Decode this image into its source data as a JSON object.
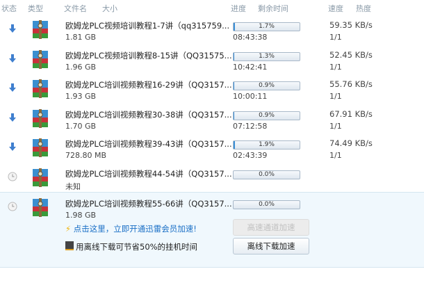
{
  "header": {
    "status": "状态",
    "type": "类型",
    "filename": "文件名",
    "size": "大小",
    "progress": "进度",
    "remaining": "剩余时间",
    "speed": "速度",
    "heat": "热度"
  },
  "colors": {
    "accent": "#3b8fd6",
    "link": "#1a6fc6",
    "selected_bg": "#f0f8fd"
  },
  "tasks": [
    {
      "status": "downloading",
      "name": "欧姆龙PLC视频培训教程1-7讲（qq315759...",
      "size": "1.81 GB",
      "progress": "1.7%",
      "pct": 1.7,
      "remaining": "08:43:38",
      "speed": "59.35 KB/s",
      "heat": "1/1"
    },
    {
      "status": "downloading",
      "name": "欧姆龙PLC视频培训教程8-15讲（QQ31575...",
      "size": "1.96 GB",
      "progress": "1.3%",
      "pct": 1.3,
      "remaining": "10:42:41",
      "speed": "52.45 KB/s",
      "heat": "1/1"
    },
    {
      "status": "downloading",
      "name": "欧姆龙PLC培训视频教程16-29讲（QQ3157...",
      "size": "1.93 GB",
      "progress": "0.9%",
      "pct": 0.9,
      "remaining": "10:00:11",
      "speed": "55.76 KB/s",
      "heat": "1/1"
    },
    {
      "status": "downloading",
      "name": "欧姆龙PLC培训视频教程30-38讲（QQ3157...",
      "size": "1.70 GB",
      "progress": "0.9%",
      "pct": 0.9,
      "remaining": "07:12:58",
      "speed": "67.91 KB/s",
      "heat": "1/1"
    },
    {
      "status": "downloading",
      "name": "欧姆龙PLC培训视频教程39-43讲（QQ3157...",
      "size": "728.80 MB",
      "progress": "1.9%",
      "pct": 1.9,
      "remaining": "02:43:39",
      "speed": "74.49 KB/s",
      "heat": "1/1"
    },
    {
      "status": "waiting",
      "name": "欧姆龙PLC培训视频教程44-54讲（QQ3157...",
      "size": "未知",
      "progress": "0.0%",
      "pct": 0,
      "remaining": "",
      "speed": "",
      "heat": ""
    },
    {
      "status": "waiting",
      "name": "欧姆龙PLC培训视频教程55-66讲（QQ3157...",
      "size": "1.98 GB",
      "progress": "0.0%",
      "pct": 0,
      "remaining": "",
      "speed": "",
      "heat": ""
    }
  ],
  "selected": {
    "vip_link": "点击这里，立即开通迅雷会员加速!",
    "offline_tip": "用离线下载可节省50%的挂机时间",
    "high_speed_button": "高速通道加速",
    "offline_button": "离线下载加速"
  }
}
